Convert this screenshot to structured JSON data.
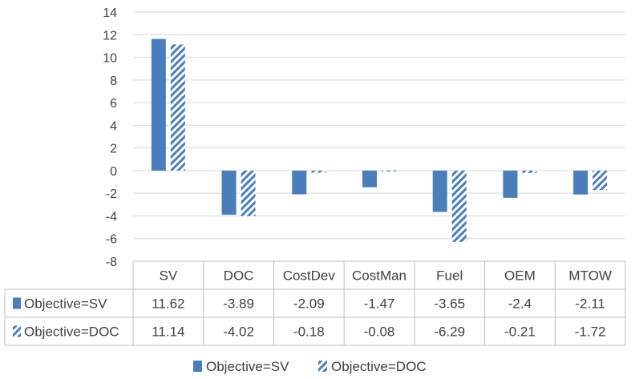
{
  "chart_data": {
    "type": "bar",
    "title": "",
    "xlabel": "",
    "ylabel": "",
    "categories": [
      "SV",
      "DOC",
      "CostDev",
      "CostMan",
      "Fuel",
      "OEM",
      "MTOW"
    ],
    "series": [
      {
        "name": "Objective=SV",
        "values": [
          11.62,
          -3.89,
          -2.09,
          -1.47,
          -3.65,
          -2.4,
          -2.11
        ],
        "labels": [
          "11.62",
          "-3.89",
          "-2.09",
          "-1.47",
          "-3.65",
          "-2.4",
          "-2.11"
        ],
        "color": "#4a7eba",
        "pattern": "solid"
      },
      {
        "name": "Objective=DOC",
        "values": [
          11.14,
          -4.02,
          -0.18,
          -0.08,
          -6.29,
          -0.21,
          -1.72
        ],
        "labels": [
          "11.14",
          "-4.02",
          "-0.18",
          "-0.08",
          "-6.29",
          "-0.21",
          "-1.72"
        ],
        "color": "#4a7eba",
        "pattern": "diagonal-hatch"
      }
    ],
    "ylim": [
      -8,
      14
    ],
    "yticks": [
      "-8",
      "-6",
      "-4",
      "-2",
      "0",
      "2",
      "4",
      "6",
      "8",
      "10",
      "12",
      "14"
    ],
    "grid": true,
    "data_table": true,
    "legend_position": "bottom"
  }
}
